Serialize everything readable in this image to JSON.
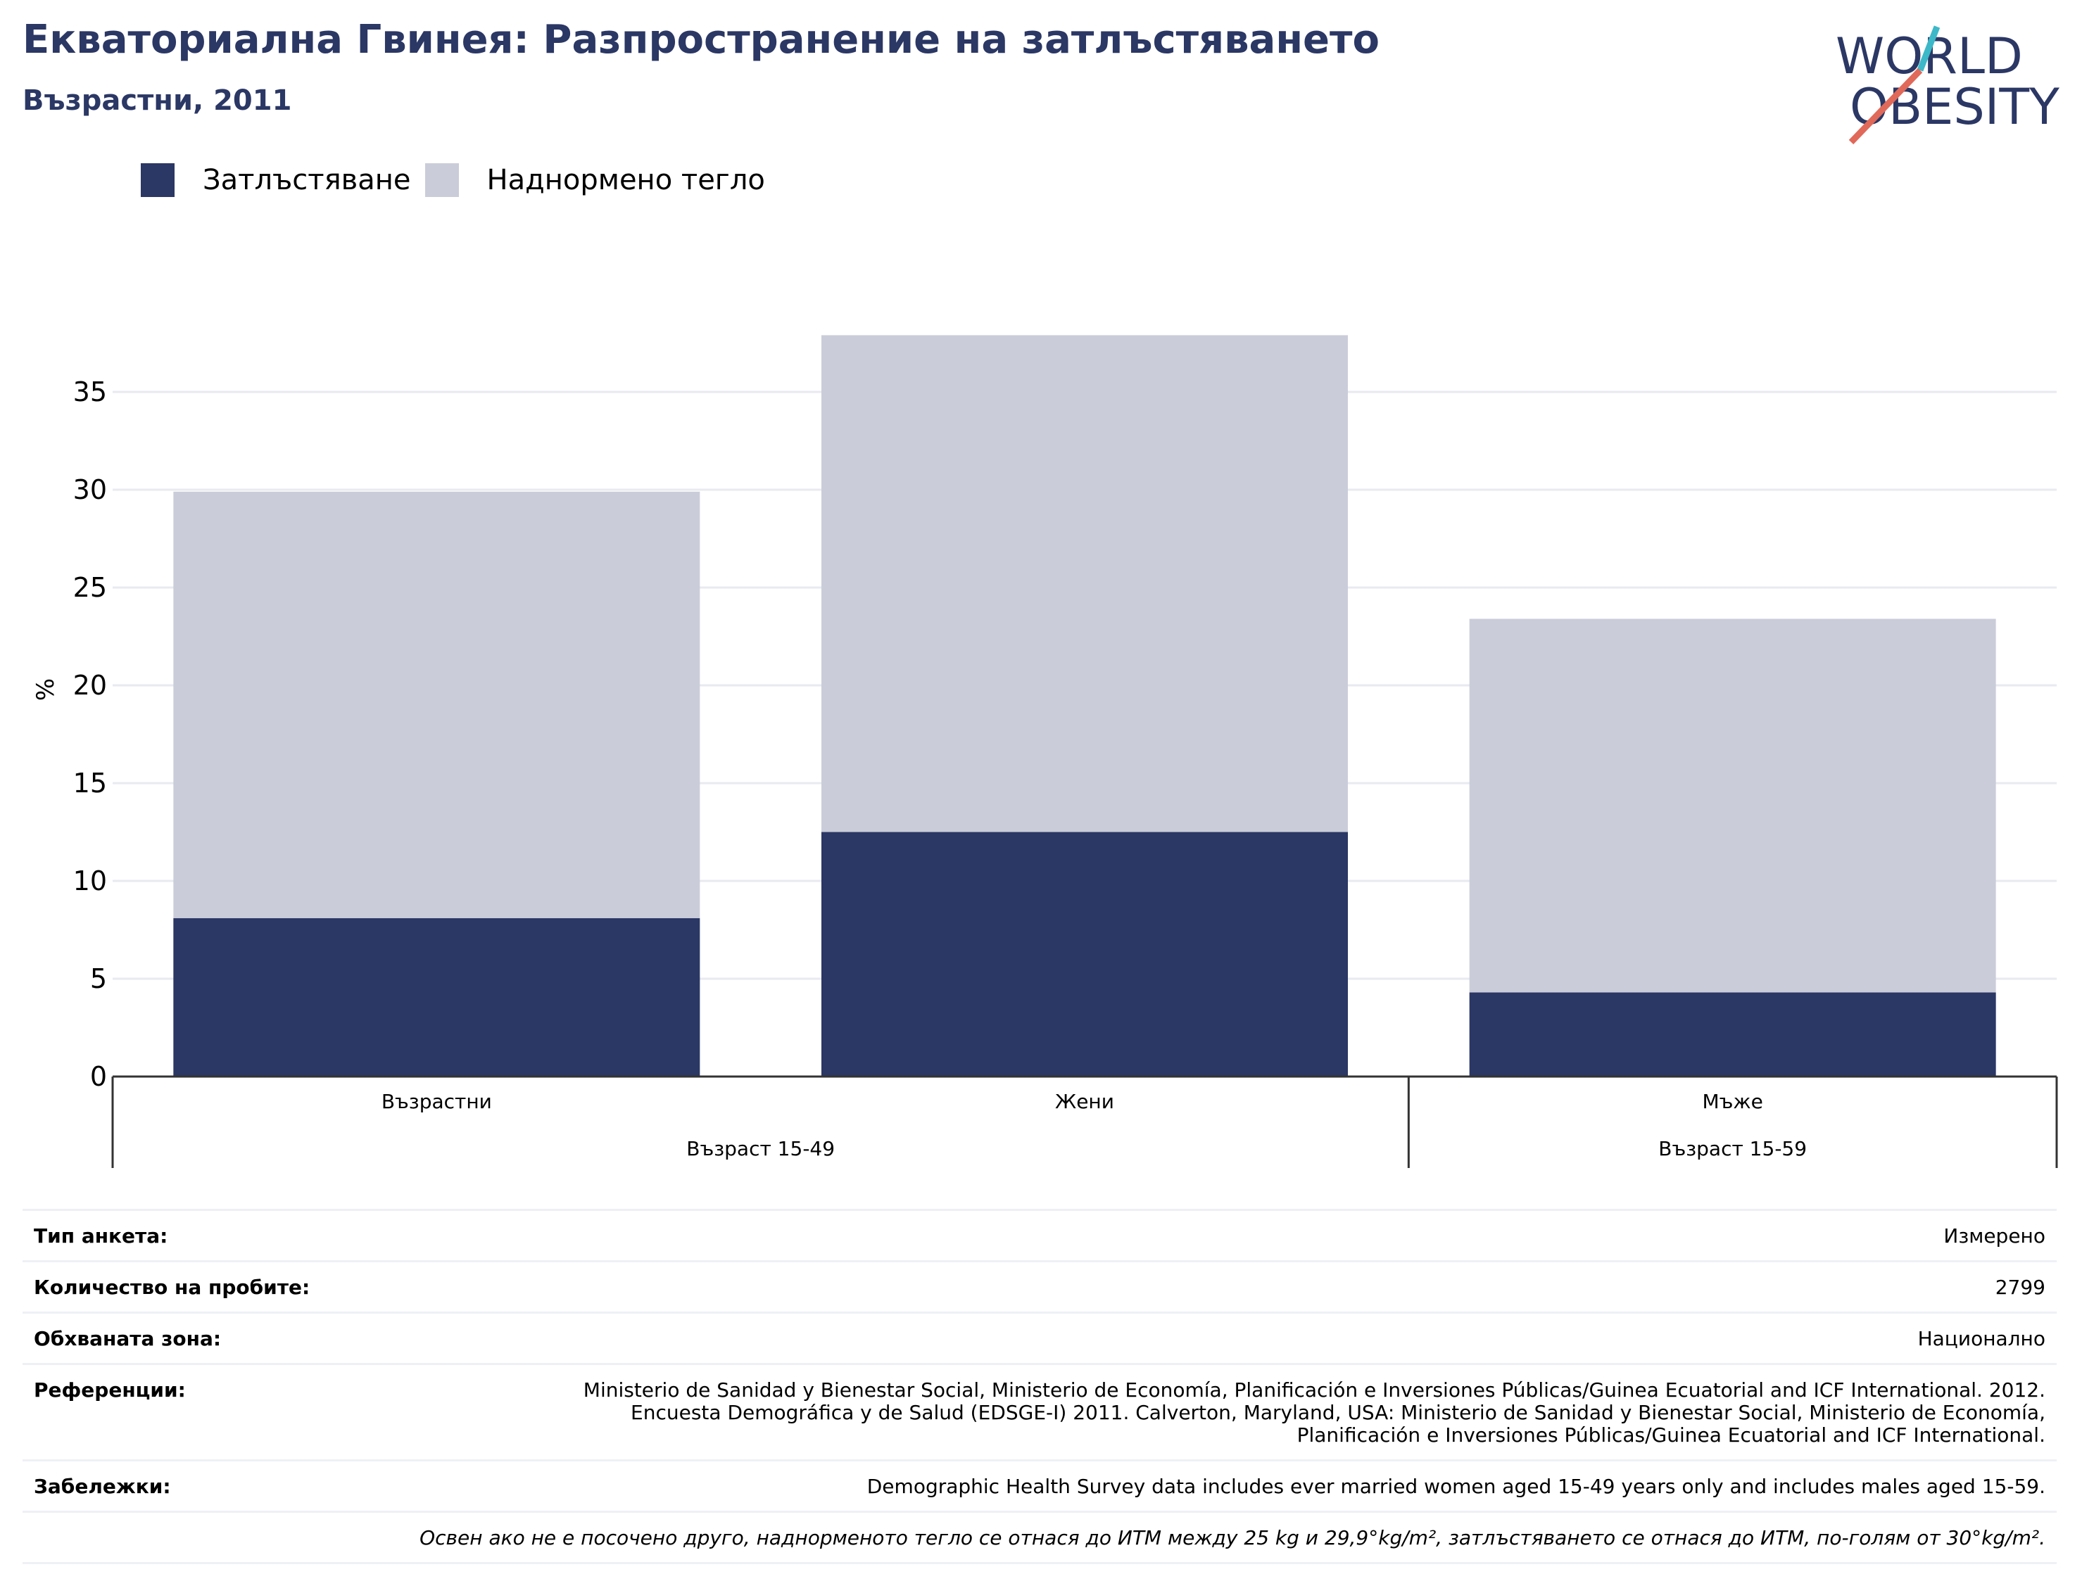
{
  "header": {
    "title": "Екваториална Гвинея: Разпространение на затлъстяването",
    "subtitle": "Възрастни, 2011"
  },
  "logo": {
    "line1": "WORLD",
    "line2": "OBESITY"
  },
  "colors": {
    "obesity": "#2b3764",
    "overweight": "#cacdd9",
    "grid": "#e8eaf0",
    "axis": "#333333",
    "brand_teal": "#3cb8c8",
    "brand_coral": "#e0695a"
  },
  "chart_data": {
    "type": "bar",
    "stacked": true,
    "categories": [
      "Възрастни",
      "Жени",
      "Мъже"
    ],
    "groups": [
      {
        "label": "Възраст 15-49",
        "categories": [
          "Възрастни",
          "Жени"
        ]
      },
      {
        "label": "Възраст 15-59",
        "categories": [
          "Мъже"
        ]
      }
    ],
    "series": [
      {
        "name": "Затлъстяване",
        "values": [
          8.1,
          12.5,
          4.3
        ]
      },
      {
        "name": "Наднормено тегло",
        "values": [
          21.8,
          25.4,
          19.1
        ]
      }
    ],
    "ylabel": "%",
    "ylim": [
      0,
      38
    ],
    "yticks": [
      0,
      5,
      10,
      15,
      20,
      25,
      30,
      35
    ],
    "grid": true,
    "legend_position": "top-left"
  },
  "info": [
    {
      "label": "Тип анкета:",
      "value": "Измерено"
    },
    {
      "label": "Количество на пробите:",
      "value": "2799"
    },
    {
      "label": "Обхваната зона:",
      "value": "Национално"
    },
    {
      "label": "Референции:",
      "value": "Ministerio de Sanidad y Bienestar Social, Ministerio de Economía, Planificación e Inversiones Públicas/Guinea Ecuatorial and ICF International. 2012. Encuesta Demográfica y de Salud (EDSGE-I) 2011. Calverton, Maryland, USA: Ministerio de Sanidad y Bienestar Social, Ministerio de Economía, Planificación e Inversiones Públicas/Guinea Ecuatorial and ICF International."
    },
    {
      "label": "Забележки:",
      "value": "Demographic Health Survey data includes ever married women aged 15-49 years only and includes males aged 15-59."
    }
  ],
  "footnote": "Освен ако не е посочено друго, наднорменото тегло се отнася до ИТМ между 25 kg и 29,9°kg/m², затлъстяването се отнася до ИТМ, по-голям от 30°kg/m²."
}
